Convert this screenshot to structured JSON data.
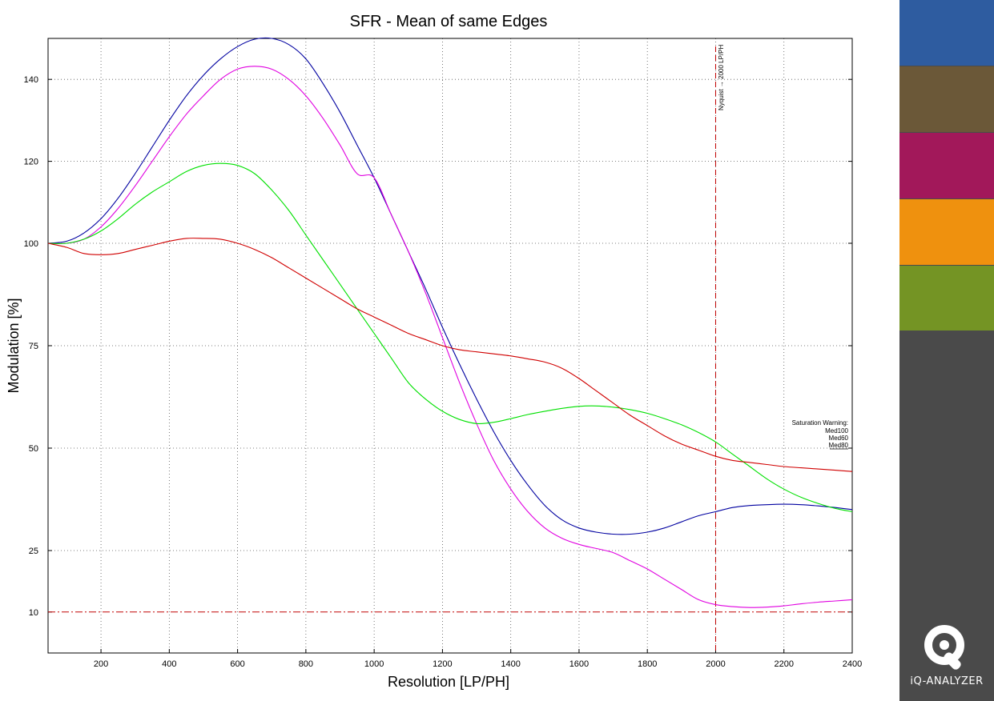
{
  "chart_data": {
    "type": "line",
    "title": "SFR - Mean of same Edges",
    "xlabel": "Resolution [LP/PH]",
    "ylabel": "Modulation [%]",
    "xlim": [
      45,
      2400
    ],
    "ylim": [
      0,
      150
    ],
    "x_ticks": [
      200,
      400,
      600,
      800,
      1000,
      1200,
      1400,
      1600,
      1800,
      2000,
      2200,
      2400
    ],
    "y_ticks": [
      10,
      25,
      50,
      75,
      100,
      120,
      140
    ],
    "grid": true,
    "series": [
      {
        "color": "#0000a0",
        "x": [
          45,
          100,
          150,
          200,
          250,
          300,
          350,
          400,
          450,
          500,
          550,
          600,
          650,
          700,
          750,
          800,
          850,
          900,
          950,
          1000,
          1050,
          1100,
          1150,
          1200,
          1250,
          1300,
          1350,
          1400,
          1450,
          1500,
          1550,
          1600,
          1650,
          1700,
          1750,
          1800,
          1850,
          1900,
          1950,
          2000,
          2050,
          2100,
          2150,
          2200,
          2250,
          2300,
          2350,
          2400
        ],
        "y": [
          100,
          100.5,
          102.5,
          106,
          111,
          117,
          123.5,
          130,
          136,
          141,
          145,
          148,
          149.8,
          150,
          148.5,
          145,
          139,
          132,
          124,
          116,
          107,
          98,
          89,
          79.5,
          70.5,
          62,
          54,
          47,
          41,
          36,
          32.5,
          30.5,
          29.5,
          29,
          29,
          29.5,
          30.5,
          32,
          33.5,
          34.5,
          35.5,
          36,
          36.2,
          36.3,
          36.2,
          35.9,
          35.5,
          35
        ]
      },
      {
        "color": "#e000e0",
        "x": [
          45,
          100,
          150,
          200,
          250,
          300,
          350,
          400,
          450,
          500,
          550,
          600,
          650,
          700,
          750,
          800,
          850,
          900,
          950,
          1000,
          1050,
          1100,
          1150,
          1200,
          1250,
          1300,
          1350,
          1400,
          1450,
          1500,
          1550,
          1600,
          1650,
          1700,
          1750,
          1800,
          1850,
          1900,
          1950,
          2000,
          2050,
          2100,
          2150,
          2200,
          2250,
          2300,
          2350,
          2400
        ],
        "y": [
          100,
          100,
          101,
          104,
          108.5,
          114,
          120,
          126,
          131.5,
          136,
          140,
          142.5,
          143.2,
          142.5,
          140,
          136,
          130.5,
          124,
          117,
          116,
          107,
          98,
          88,
          77,
          66,
          56,
          47,
          40,
          34.5,
          30.5,
          28,
          26.5,
          25.5,
          24.5,
          22.5,
          20.5,
          18,
          15.5,
          13,
          11.8,
          11.3,
          11.1,
          11.2,
          11.5,
          12,
          12.4,
          12.7,
          13
        ]
      },
      {
        "color": "#00e000",
        "x": [
          45,
          100,
          150,
          200,
          250,
          300,
          350,
          400,
          450,
          500,
          550,
          600,
          650,
          700,
          750,
          800,
          850,
          900,
          950,
          1000,
          1050,
          1100,
          1150,
          1200,
          1250,
          1300,
          1350,
          1400,
          1450,
          1500,
          1550,
          1600,
          1650,
          1700,
          1750,
          1800,
          1850,
          1900,
          1950,
          2000,
          2050,
          2100,
          2150,
          2200,
          2250,
          2300,
          2350,
          2400
        ],
        "y": [
          100,
          100,
          101,
          103,
          106,
          109.5,
          112.5,
          115,
          117.5,
          119,
          119.5,
          119,
          117,
          113,
          108,
          102,
          96,
          90,
          84,
          78,
          72,
          66,
          62,
          59,
          57,
          56,
          56.3,
          57.2,
          58.2,
          59,
          59.7,
          60.2,
          60.3,
          60,
          59.4,
          58.5,
          57.2,
          55.7,
          53.8,
          51.5,
          48.5,
          45.5,
          42.5,
          40,
          38,
          36.5,
          35.3,
          34.5
        ]
      },
      {
        "color": "#d00000",
        "x": [
          45,
          100,
          150,
          200,
          250,
          300,
          350,
          400,
          450,
          500,
          550,
          600,
          650,
          700,
          750,
          800,
          850,
          900,
          950,
          1000,
          1050,
          1100,
          1150,
          1200,
          1250,
          1300,
          1350,
          1400,
          1450,
          1500,
          1550,
          1600,
          1650,
          1700,
          1750,
          1800,
          1850,
          1900,
          1950,
          2000,
          2050,
          2100,
          2150,
          2200,
          2250,
          2300,
          2350,
          2400
        ],
        "y": [
          100,
          99,
          97.5,
          97.2,
          97.5,
          98.5,
          99.5,
          100.5,
          101.2,
          101.2,
          101,
          100,
          98.5,
          96.5,
          94,
          91.5,
          89,
          86.5,
          84,
          82,
          80,
          78,
          76.5,
          75,
          74,
          73.5,
          73,
          72.5,
          71.8,
          71,
          69.5,
          67,
          64,
          61,
          58,
          55.5,
          53,
          51,
          49.5,
          48,
          47,
          46.5,
          46,
          45.5,
          45.2,
          44.9,
          44.6,
          44.3
        ]
      }
    ],
    "reference_lines": [
      {
        "orientation": "horizontal",
        "value": 10,
        "color": "#c00000",
        "style": "dash-dot"
      },
      {
        "orientation": "vertical",
        "value": 2000,
        "color": "#c00000",
        "style": "dashed",
        "label": "Nyquist → 2000 LP/PH"
      }
    ],
    "annotation": {
      "title": "Saturation Warning:",
      "lines": [
        "Med100",
        "Med60",
        "Med80"
      ]
    }
  },
  "side_panel": {
    "swatches": [
      "#2e5ca0",
      "#6b5838",
      "#a2185a",
      "#ef910e",
      "#749424"
    ],
    "background": "#4a4a4a",
    "logo_text": "iQ-ANALYZER"
  }
}
